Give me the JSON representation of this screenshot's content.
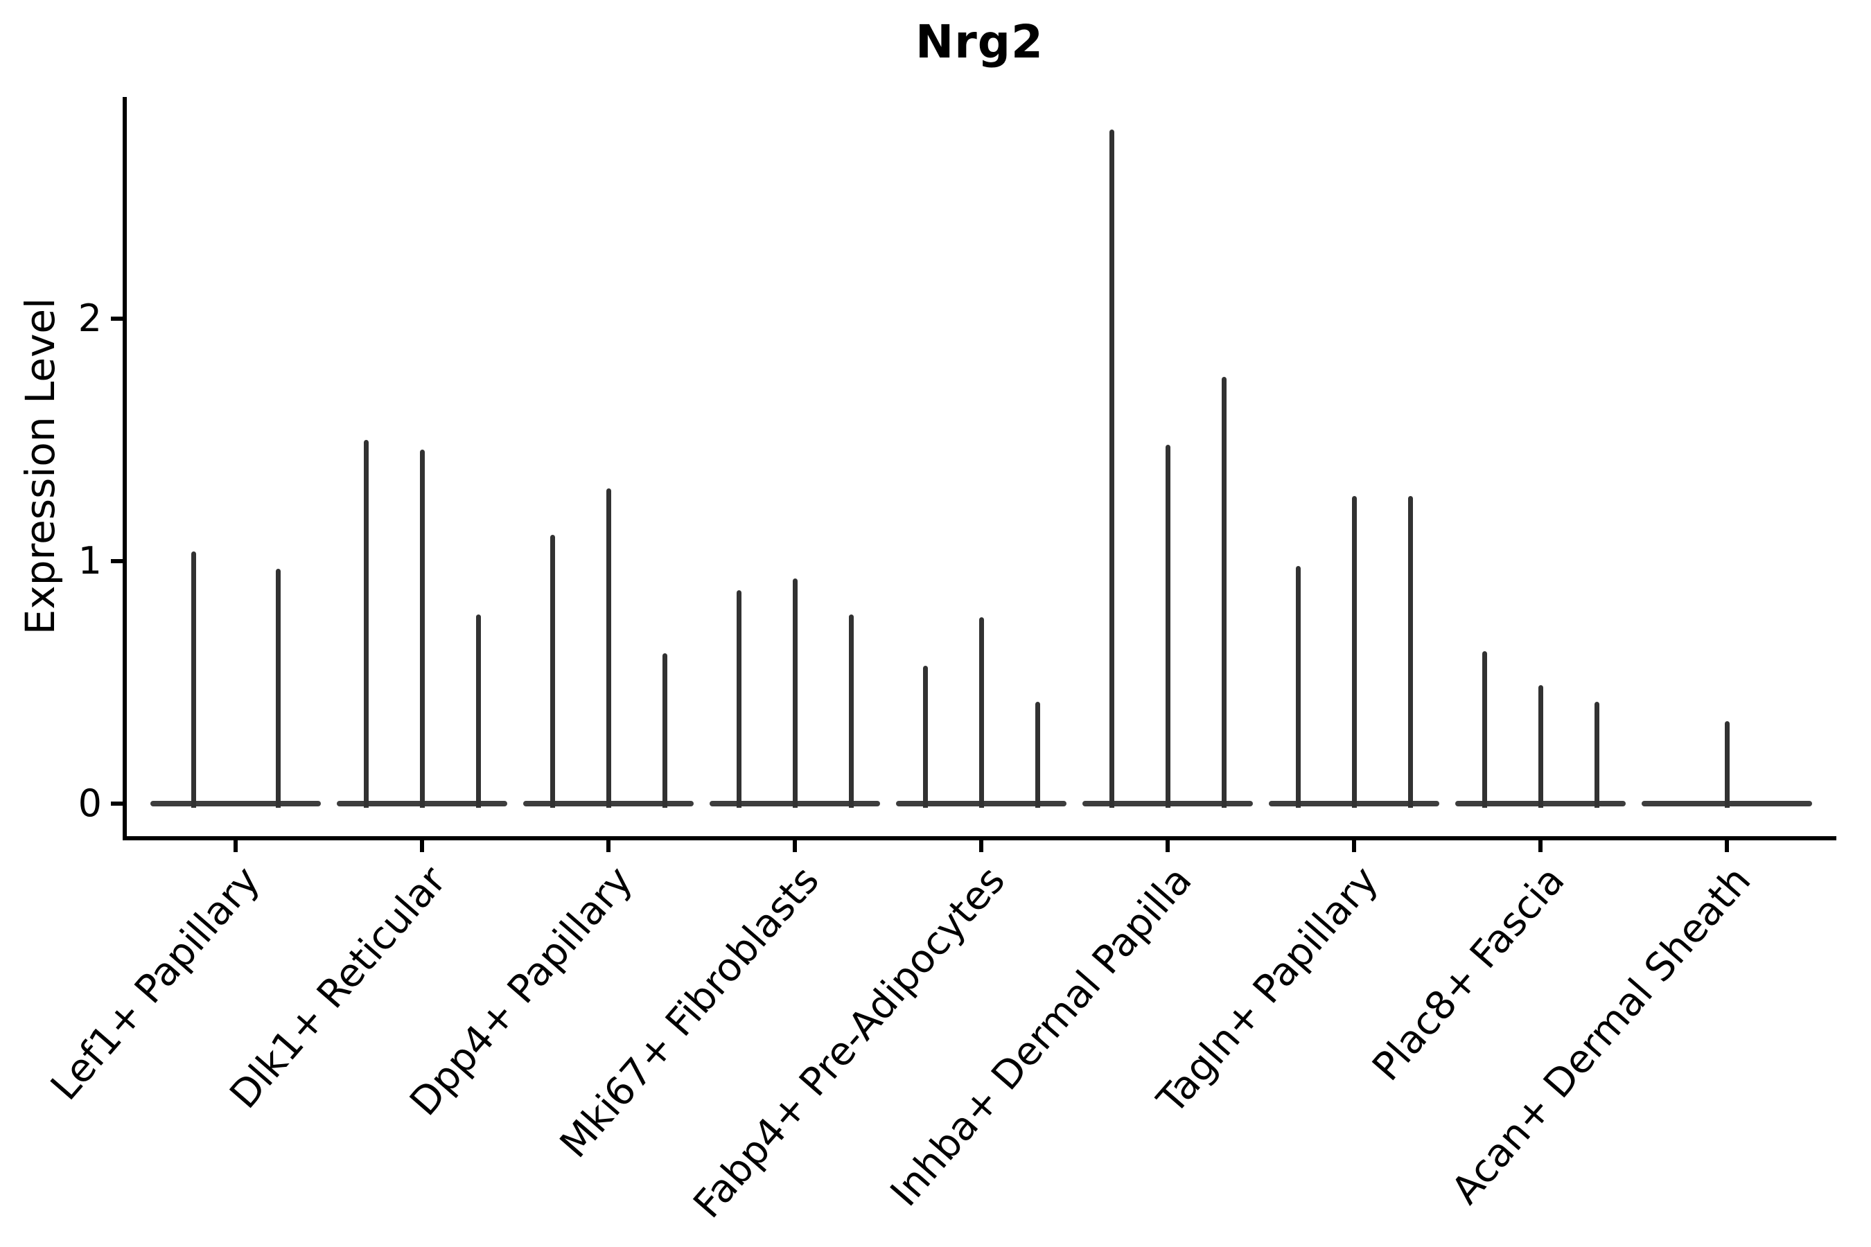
{
  "title": "Nrg2",
  "y_axis": {
    "label": "Expression Level",
    "tick_labels": [
      "0",
      "1",
      "2"
    ]
  },
  "chart_data": {
    "type": "violin",
    "title": "Nrg2",
    "xlabel": "",
    "ylabel": "Expression Level",
    "yticks": [
      0,
      1,
      2
    ],
    "ylim": [
      -0.14,
      2.92
    ],
    "grid": false,
    "legend_position": "none",
    "categories": [
      "Lef1+ Papillary",
      "Dlk1+ Reticular",
      "Dpp4+ Papillary",
      "Mki67+ Fibroblasts",
      "Fabp4+ Pre-Adipocytes",
      "Inhba+ Dermal Papilla",
      "Tagln+ Papillary",
      "Plac8+ Fascia",
      "Acan+ Dermal Sheath"
    ],
    "series": [
      {
        "category": "Lef1+ Papillary",
        "violin_peak_values": [
          1.04,
          0.97
        ]
      },
      {
        "category": "Dlk1+ Reticular",
        "violin_peak_values": [
          1.5,
          1.46,
          0.78
        ]
      },
      {
        "category": "Dpp4+ Papillary",
        "violin_peak_values": [
          1.11,
          1.3,
          0.62
        ]
      },
      {
        "category": "Mki67+ Fibroblasts",
        "violin_peak_values": [
          0.88,
          0.93,
          0.78
        ]
      },
      {
        "category": "Fabp4+ Pre-Adipocytes",
        "violin_peak_values": [
          0.57,
          0.77,
          0.42
        ]
      },
      {
        "category": "Inhba+ Dermal Papilla",
        "violin_peak_values": [
          2.78,
          1.48,
          1.76
        ]
      },
      {
        "category": "Tagln+ Papillary",
        "violin_peak_values": [
          0.98,
          1.27,
          1.27
        ]
      },
      {
        "category": "Plac8+ Fascia",
        "violin_peak_values": [
          0.63,
          0.49,
          0.42
        ]
      },
      {
        "category": "Acan+ Dermal Sheath",
        "violin_peak_values": [
          0.34
        ]
      }
    ],
    "colors": {
      "violin_line": "#323232",
      "violin_baseline": "#3d3d3d",
      "axis": "#000000",
      "text": "#000000",
      "background": "#ffffff"
    }
  }
}
